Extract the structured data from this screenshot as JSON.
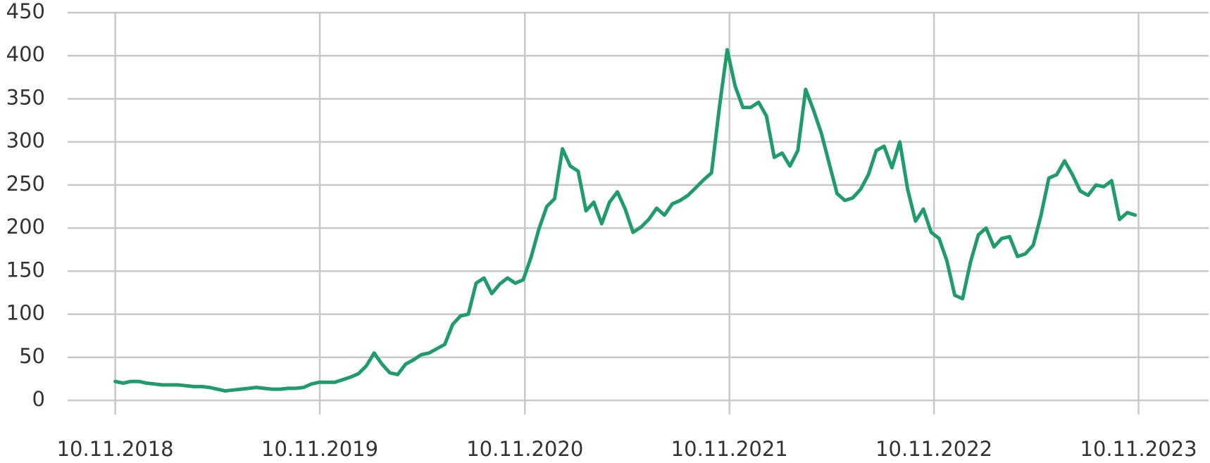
{
  "chart_data": {
    "type": "line",
    "color": "#1f9c6a",
    "grid": true,
    "ylim": [
      0,
      450
    ],
    "yticks": [
      0,
      50,
      100,
      150,
      200,
      250,
      300,
      350,
      400,
      450
    ],
    "xlim": [
      "17.08.2018",
      "14.03.2024"
    ],
    "xticks": [
      "10.11.2018",
      "10.11.2019",
      "10.11.2020",
      "10.11.2021",
      "10.11.2022",
      "10.11.2023"
    ],
    "x": [
      "10.11.2018",
      "24.11.2018",
      "08.12.2018",
      "22.12.2018",
      "05.01.2019",
      "19.01.2019",
      "02.02.2019",
      "16.02.2019",
      "02.03.2019",
      "16.03.2019",
      "30.03.2019",
      "13.04.2019",
      "27.04.2019",
      "11.05.2019",
      "25.05.2019",
      "08.06.2019",
      "22.06.2019",
      "06.07.2019",
      "20.07.2019",
      "03.08.2019",
      "17.08.2019",
      "31.08.2019",
      "14.09.2019",
      "28.09.2019",
      "12.10.2019",
      "26.10.2019",
      "09.11.2019",
      "23.11.2019",
      "07.12.2019",
      "21.12.2019",
      "04.01.2020",
      "18.01.2020",
      "01.02.2020",
      "15.02.2020",
      "29.02.2020",
      "14.03.2020",
      "28.03.2020",
      "11.04.2020",
      "25.04.2020",
      "09.05.2020",
      "23.05.2020",
      "06.06.2020",
      "20.06.2020",
      "04.07.2020",
      "18.07.2020",
      "01.08.2020",
      "15.08.2020",
      "29.08.2020",
      "12.09.2020",
      "26.09.2020",
      "10.10.2020",
      "24.10.2020",
      "07.11.2020",
      "21.11.2020",
      "05.12.2020",
      "19.12.2020",
      "02.01.2021",
      "16.01.2021",
      "30.01.2021",
      "13.02.2021",
      "27.02.2021",
      "13.03.2021",
      "27.03.2021",
      "10.04.2021",
      "24.04.2021",
      "08.05.2021",
      "22.05.2021",
      "05.06.2021",
      "19.06.2021",
      "03.07.2021",
      "17.07.2021",
      "31.07.2021",
      "14.08.2021",
      "28.08.2021",
      "11.09.2021",
      "25.09.2021",
      "09.10.2021",
      "23.10.2021",
      "06.11.2021",
      "20.11.2021",
      "04.12.2021",
      "18.12.2021",
      "01.01.2022",
      "15.01.2022",
      "29.01.2022",
      "12.02.2022",
      "26.02.2022",
      "12.03.2022",
      "26.03.2022",
      "09.04.2022",
      "23.04.2022",
      "07.05.2022",
      "21.05.2022",
      "04.06.2022",
      "18.06.2022",
      "02.07.2022",
      "16.07.2022",
      "30.07.2022",
      "13.08.2022",
      "27.08.2022",
      "10.09.2022",
      "24.09.2022",
      "08.10.2022",
      "22.10.2022",
      "05.11.2022",
      "19.11.2022",
      "03.12.2022",
      "17.12.2022",
      "31.12.2022",
      "14.01.2023",
      "28.01.2023",
      "11.02.2023",
      "25.02.2023",
      "11.03.2023",
      "25.03.2023",
      "08.04.2023",
      "22.04.2023",
      "06.05.2023",
      "20.05.2023",
      "03.06.2023",
      "17.06.2023",
      "01.07.2023",
      "15.07.2023",
      "29.07.2023",
      "12.08.2023",
      "26.08.2023",
      "09.09.2023",
      "23.09.2023",
      "07.10.2023",
      "21.10.2023",
      "04.11.2023"
    ],
    "values": [
      22,
      20,
      22,
      22,
      20,
      19,
      18,
      18,
      18,
      17,
      16,
      16,
      15,
      13,
      11,
      12,
      13,
      14,
      15,
      14,
      13,
      13,
      14,
      14,
      15,
      19,
      21,
      21,
      21,
      24,
      27,
      31,
      40,
      55,
      42,
      32,
      30,
      42,
      47,
      53,
      55,
      60,
      65,
      88,
      98,
      100,
      136,
      142,
      124,
      135,
      142,
      136,
      140,
      166,
      199,
      225,
      234,
      292,
      272,
      266,
      220,
      230,
      205,
      230,
      242,
      222,
      195,
      201,
      210,
      223,
      215,
      228,
      232,
      238,
      247,
      256,
      264,
      340,
      407,
      365,
      340,
      340,
      346,
      330,
      282,
      287,
      272,
      290,
      361,
      337,
      310,
      275,
      240,
      232,
      235,
      245,
      262,
      290,
      295,
      270,
      300,
      245,
      208,
      222,
      195,
      188,
      162,
      122,
      118,
      160,
      192,
      200,
      178,
      188,
      190,
      167,
      170,
      180,
      215,
      258,
      262,
      278,
      262,
      243,
      238,
      250,
      248,
      255,
      210,
      218,
      215
    ]
  }
}
